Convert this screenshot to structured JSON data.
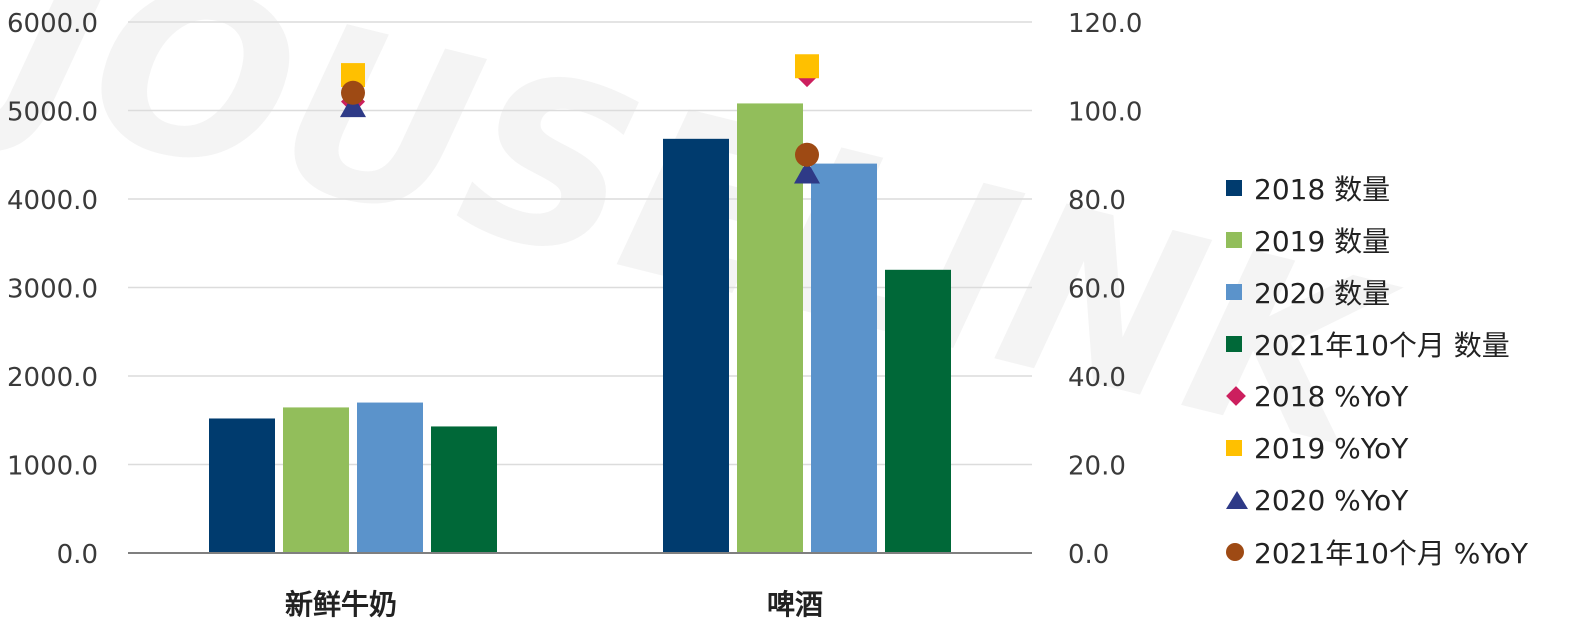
{
  "watermark": "JOUSELINK",
  "chart_data": {
    "type": "bar",
    "categories": [
      "新鲜牛奶",
      "啤酒"
    ],
    "series": [
      {
        "name": "2018 数量",
        "axis": "left",
        "kind": "bar",
        "color": "#003B6E",
        "values": [
          1520,
          4680
        ]
      },
      {
        "name": "2019 数量",
        "axis": "left",
        "kind": "bar",
        "color": "#92BE5B",
        "values": [
          1645,
          5080
        ]
      },
      {
        "name": "2020 数量",
        "axis": "left",
        "kind": "bar",
        "color": "#5B93CB",
        "values": [
          1700,
          4400
        ]
      },
      {
        "name": "2021年10个月 数量",
        "axis": "left",
        "kind": "bar",
        "color": "#006838",
        "values": [
          1430,
          3200
        ]
      },
      {
        "name": "2018 %YoY",
        "axis": "right",
        "kind": "marker",
        "marker": "diamond",
        "color": "#CC1F5E",
        "values": [
          102,
          108
        ]
      },
      {
        "name": "2019 %YoY",
        "axis": "right",
        "kind": "marker",
        "marker": "square",
        "color": "#FFC000",
        "values": [
          108,
          110
        ]
      },
      {
        "name": "2020 %YoY",
        "axis": "right",
        "kind": "marker",
        "marker": "triangle",
        "color": "#2E3A87",
        "values": [
          101,
          86
        ]
      },
      {
        "name": "2021年10个月 %YoY",
        "axis": "right",
        "kind": "marker",
        "marker": "circle",
        "color": "#9E4A14",
        "values": [
          104,
          90
        ]
      }
    ],
    "y_left": {
      "ylim": [
        0,
        6000
      ],
      "ticks": [
        "0.0",
        "1000.0",
        "2000.0",
        "3000.0",
        "4000.0",
        "5000.0",
        "6000.0"
      ]
    },
    "y_right": {
      "ylim": [
        0,
        120
      ],
      "ticks": [
        "0.0",
        "20.0",
        "40.0",
        "60.0",
        "80.0",
        "100.0",
        "120.0"
      ]
    },
    "grid": true,
    "legend_position": "right"
  }
}
